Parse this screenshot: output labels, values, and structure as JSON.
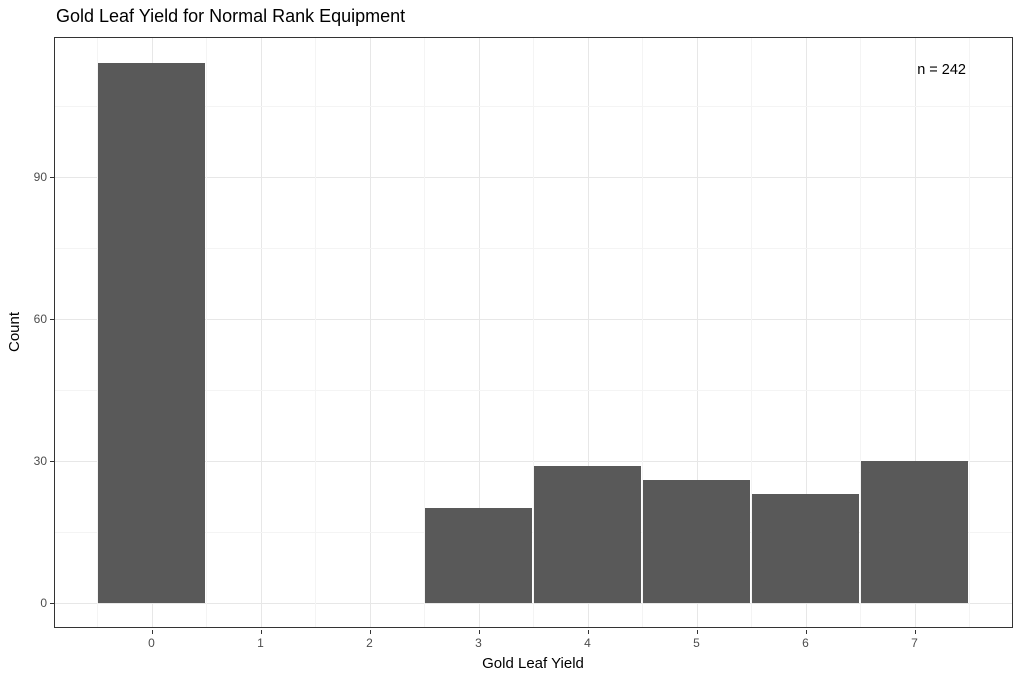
{
  "chart_data": {
    "type": "bar",
    "subtype": "histogram",
    "title": "Gold Leaf Yield for Normal Rank Equipment",
    "xlabel": "Gold Leaf Yield",
    "ylabel": "Count",
    "annotation": "n = 242",
    "categories": [
      0,
      1,
      2,
      3,
      4,
      5,
      6,
      7
    ],
    "values": [
      114,
      0,
      0,
      20,
      29,
      26,
      23,
      30
    ],
    "bin_width": 1,
    "total_n": 242,
    "x_tick_labels": [
      "0",
      "1",
      "2",
      "3",
      "4",
      "5",
      "6",
      "7"
    ],
    "y_tick_labels": [
      "0",
      "30",
      "60",
      "90"
    ],
    "y_ticks": [
      0,
      30,
      60,
      90
    ],
    "y_minor_ticks": [
      15,
      45,
      75,
      105
    ],
    "ylim": [
      0,
      119.7
    ],
    "xlim": [
      -0.9,
      7.9
    ],
    "grid": "major-and-minor",
    "legend": "none",
    "colors": {
      "bar_fill": "#595959",
      "panel_border": "#333333",
      "grid_major": "#e7e7e7",
      "grid_minor": "#f4f4f4",
      "tick_label": "#4d4d4d",
      "text": "#000000",
      "background": "#ffffff"
    }
  }
}
